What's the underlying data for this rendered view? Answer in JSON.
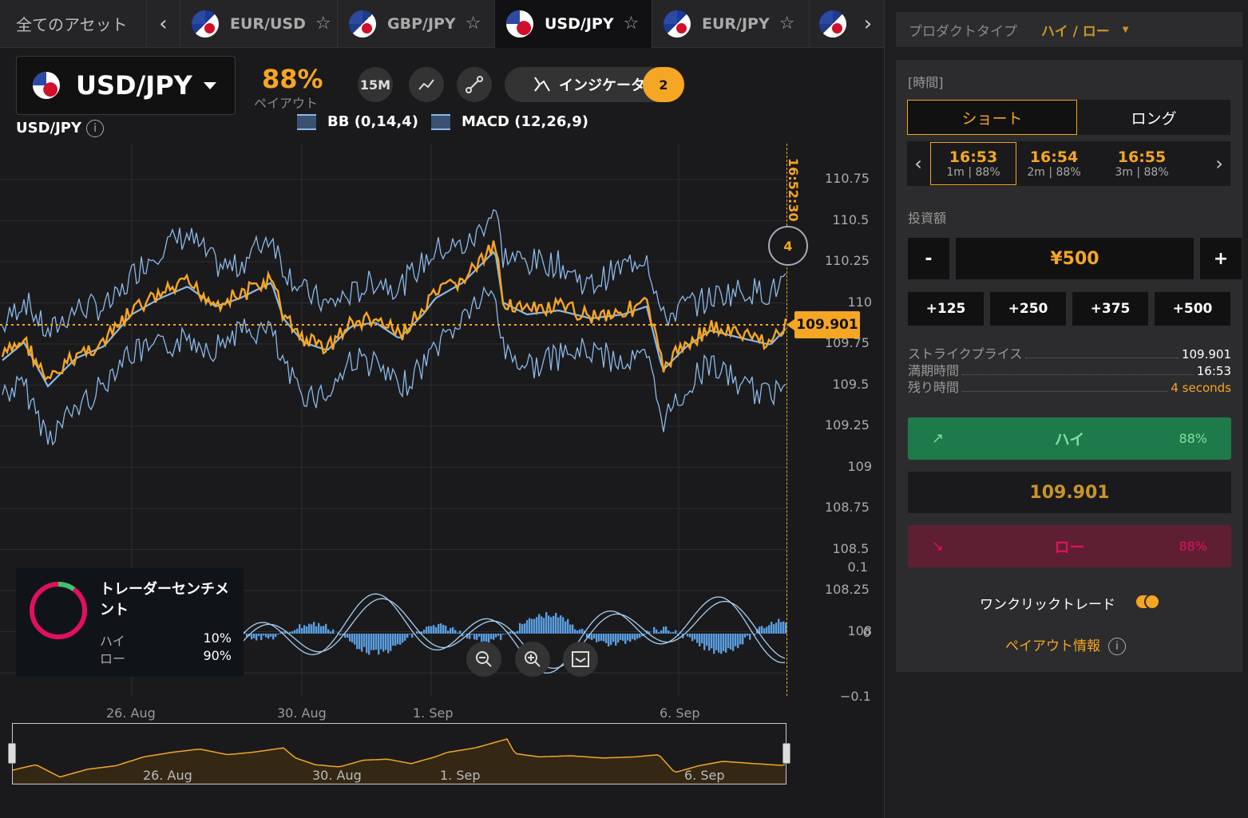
{
  "tabs": {
    "all_label": "全てのアセット",
    "items": [
      {
        "label": "EUR/USD",
        "flag": "eu-us",
        "active": false
      },
      {
        "label": "GBP/JPY",
        "flag": "gb-jp",
        "active": false
      },
      {
        "label": "USD/JPY",
        "flag": "us-jp",
        "active": true
      },
      {
        "label": "EUR/JPY",
        "flag": "eu-us",
        "active": false
      }
    ]
  },
  "chart_header": {
    "asset": "USD/JPY",
    "payout_pct": "88%",
    "payout_label": "ペイアウト",
    "timeframe": "15M",
    "indicators_label": "インジケータ",
    "indicators_count": "2",
    "symbol_label": "USD/JPY",
    "legend": [
      "BB (0,14,4)",
      "MACD (12,26,9)"
    ]
  },
  "chart": {
    "current_time": "16:52:30",
    "countdown": "4",
    "current_price": "109.901",
    "y_ticks": [
      "110.75",
      "110.5",
      "110.25",
      "110",
      "109.75",
      "109.5",
      "109.25",
      "109",
      "108.75",
      "108.5",
      "108.25",
      "108"
    ],
    "macd_ticks": [
      "0.1",
      "0",
      "−0.1"
    ],
    "x_ticks": [
      "26. Aug",
      "30. Aug",
      "1. Sep",
      "6. Sep"
    ],
    "nav_x_ticks": [
      "26. Aug",
      "30. Aug",
      "1. Sep",
      "6. Sep"
    ],
    "colors": {
      "price": "#f5a623",
      "bands": "#8cb8e8",
      "grid": "#2e2e32"
    }
  },
  "sentiment": {
    "title": "トレーダーセンチメント",
    "high_label": "ハイ",
    "high_value": "10%",
    "low_label": "ロー",
    "low_value": "90%",
    "high_pct": 0.1
  },
  "panel": {
    "product_type_label": "プロダクトタイプ",
    "product_type_value": "ハイ / ロー",
    "time_label": "[時間]",
    "short_label": "ショート",
    "long_label": "ロング",
    "expiries": [
      {
        "time": "16:53",
        "sub": "1m | 88%",
        "selected": true
      },
      {
        "time": "16:54",
        "sub": "2m | 88%",
        "selected": false
      },
      {
        "time": "16:55",
        "sub": "3m | 88%",
        "selected": false
      }
    ],
    "investment_label": "投資額",
    "minus": "-",
    "plus": "+",
    "amount": "¥500",
    "quick_amounts": [
      "+125",
      "+250",
      "+375",
      "+500"
    ],
    "strike_label": "ストライクプライス",
    "strike_value": "109.901",
    "expiry_label": "満期時間",
    "expiry_value": "16:53",
    "remaining_label": "残り時間",
    "remaining_value": "4 seconds",
    "high_button": "ハイ",
    "high_pct": "88%",
    "strike_display": "109.901",
    "low_button": "ロー",
    "low_pct": "88%",
    "one_click_label": "ワンクリックトレード",
    "payout_info_label": "ペイアウト情報"
  }
}
